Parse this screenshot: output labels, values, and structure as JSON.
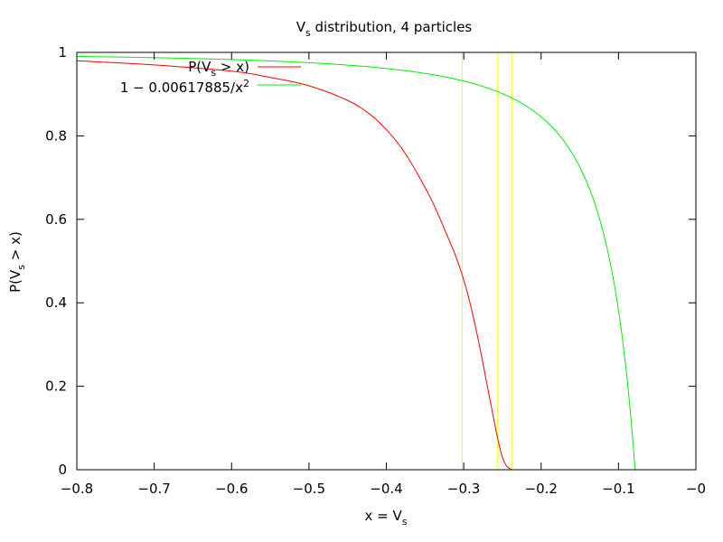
{
  "chart_data": {
    "type": "line",
    "title": "V",
    "title_sub": "s",
    "title_rest": " distribution, 4 particles",
    "xlabel": "x = V",
    "xlabel_sub": "s",
    "ylabel_pre": "P(V",
    "ylabel_sub": "s",
    "ylabel_post": " > x)",
    "xlim": [
      -0.8,
      0
    ],
    "ylim": [
      0,
      1
    ],
    "xticks": [
      -0.8,
      -0.7,
      -0.6,
      -0.5,
      -0.4,
      -0.3,
      -0.2,
      -0.1,
      0
    ],
    "xtick_labels": [
      "−0.8",
      "−0.7",
      "−0.6",
      "−0.5",
      "−0.4",
      "−0.3",
      "−0.2",
      "−0.1",
      "−0"
    ],
    "yticks": [
      0,
      0.2,
      0.4,
      0.6,
      0.8,
      1
    ],
    "ytick_labels": [
      "0",
      "0.2",
      "0.4",
      "0.6",
      "0.8",
      "1"
    ],
    "grid": false,
    "legend_position": "top-left",
    "vlines": [
      -0.302,
      -0.256,
      -0.238
    ],
    "vline_color": "#ffff00",
    "series": [
      {
        "name_pre": "P(V",
        "name_sub": "s",
        "name_post": " > x)",
        "color": "#ff0000",
        "x": [
          -0.8,
          -0.7,
          -0.6,
          -0.55,
          -0.5,
          -0.45,
          -0.42,
          -0.4,
          -0.38,
          -0.36,
          -0.34,
          -0.32,
          -0.31,
          -0.3,
          -0.29,
          -0.28,
          -0.27,
          -0.26,
          -0.255,
          -0.25,
          -0.245,
          -0.24,
          -0.238
        ],
        "y": [
          0.98,
          0.97,
          0.955,
          0.94,
          0.92,
          0.885,
          0.85,
          0.815,
          0.77,
          0.71,
          0.64,
          0.555,
          0.51,
          0.455,
          0.385,
          0.3,
          0.205,
          0.11,
          0.065,
          0.03,
          0.01,
          0.002,
          0
        ]
      },
      {
        "name_pre": "1 − 0.00617885/x",
        "name_sup": "2",
        "color": "#00ee00",
        "formula": "1 - 0.00617885/x^2"
      }
    ]
  }
}
